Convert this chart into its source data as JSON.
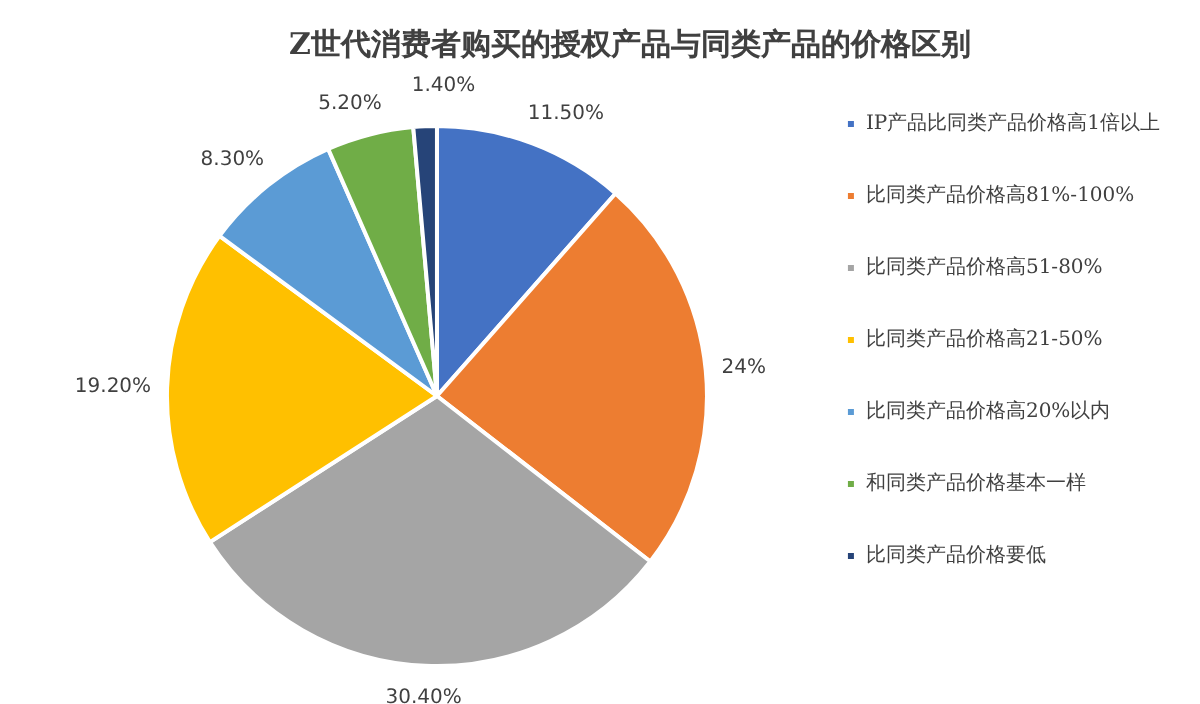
{
  "chart_data": {
    "type": "pie",
    "title": "Z世代消费者购买的授权产品与同类产品的价格区别",
    "categories": [
      "IP产品比同类产品价格高1倍以上",
      "比同类产品价格高81%-100%",
      "比同类产品价格高51-80%",
      "比同类产品价格高21-50%",
      "比同类产品价格高20%以内",
      "和同类产品价格基本一样",
      "比同类产品价格要低"
    ],
    "values": [
      11.5,
      24,
      30.4,
      19.2,
      8.3,
      5.2,
      1.4
    ],
    "value_labels": [
      "11.50%",
      "24%",
      "30.40%",
      "19.20%",
      "8.30%",
      "5.20%",
      "1.40%"
    ],
    "colors": [
      "#4472c4",
      "#ed7d31",
      "#a5a5a5",
      "#ffc000",
      "#5b9bd5",
      "#70ad47",
      "#264478"
    ],
    "legend": "right"
  }
}
